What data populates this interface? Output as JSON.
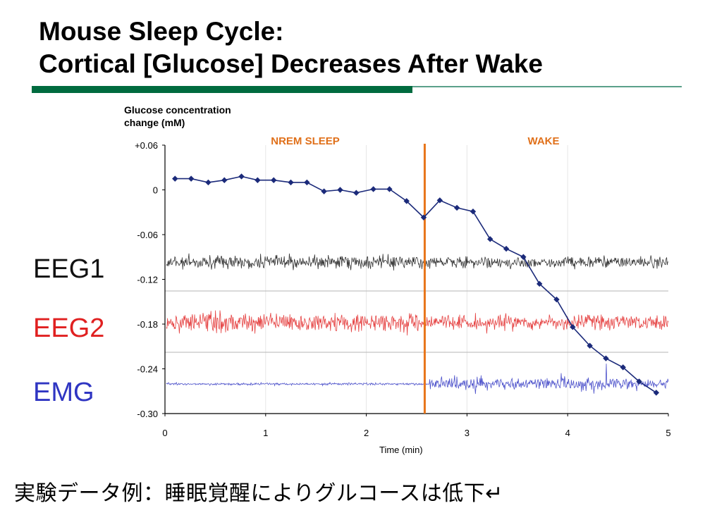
{
  "title": {
    "line1": "Mouse Sleep Cycle:",
    "line2": "Cortical [Glucose] Decreases After Wake"
  },
  "chart_data": {
    "type": "line",
    "ylabel_line1": "Glucose concentration",
    "ylabel_line2": "change (mM)",
    "xlabel": "Time (min)",
    "xlim": [
      0,
      5
    ],
    "ylim": [
      -0.3,
      0.06
    ],
    "x_ticks": [
      "0",
      "1",
      "2",
      "3",
      "4",
      "5"
    ],
    "y_ticks": [
      "+0.06",
      "0",
      "-0.06",
      "-0.12",
      "-0.18",
      "-0.24",
      "-0.30"
    ],
    "grid": "vertical",
    "phase_marker_x": 2.58,
    "phases": [
      "NREM SLEEP",
      "WAKE"
    ],
    "series": [
      {
        "color": "#1b2a7a",
        "x": [
          0.1,
          0.26,
          0.43,
          0.59,
          0.76,
          0.92,
          1.08,
          1.25,
          1.41,
          1.58,
          1.74,
          1.9,
          2.07,
          2.23,
          2.4,
          2.57,
          2.73,
          2.9,
          3.06,
          3.23,
          3.39,
          3.56,
          3.72,
          3.89,
          4.05,
          4.22,
          4.38,
          4.55,
          4.71,
          4.88
        ],
        "y": [
          0.015,
          0.015,
          0.01,
          0.013,
          0.018,
          0.013,
          0.013,
          0.01,
          0.01,
          -0.002,
          0.0,
          -0.004,
          0.001,
          0.001,
          -0.015,
          -0.037,
          -0.014,
          -0.024,
          -0.029,
          -0.066,
          -0.079,
          -0.09,
          -0.126,
          -0.147,
          -0.184,
          -0.209,
          -0.226,
          -0.238,
          -0.257,
          -0.272
        ]
      }
    ],
    "traces": [
      {
        "name": "EEG1",
        "color": "#111111"
      },
      {
        "name": "EEG2",
        "color": "#e02020"
      },
      {
        "name": "EMG",
        "color": "#2f35c2"
      }
    ]
  },
  "caption": "実験データ例：睡眠覚醒によりグルコースは低下↵"
}
